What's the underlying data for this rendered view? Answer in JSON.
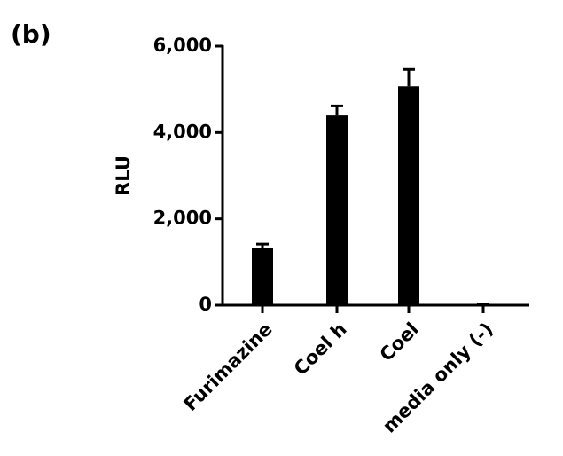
{
  "panel_label": "(b)",
  "chart_data": {
    "type": "bar",
    "ylabel": "RLU",
    "categories": [
      "Furimazine",
      "Coel h",
      "Coel",
      "media only (-)"
    ],
    "values": [
      1335,
      4395,
      5070,
      20
    ],
    "errors": [
      80,
      220,
      390,
      10
    ],
    "color": "#000000",
    "ylim": [
      0,
      6000
    ],
    "yticks": [
      0,
      {
        "value": 2000,
        "label": "2,000"
      },
      {
        "value": 4000,
        "label": "4,000"
      },
      {
        "value": 6000,
        "label": "6,000"
      }
    ],
    "grid": false
  }
}
